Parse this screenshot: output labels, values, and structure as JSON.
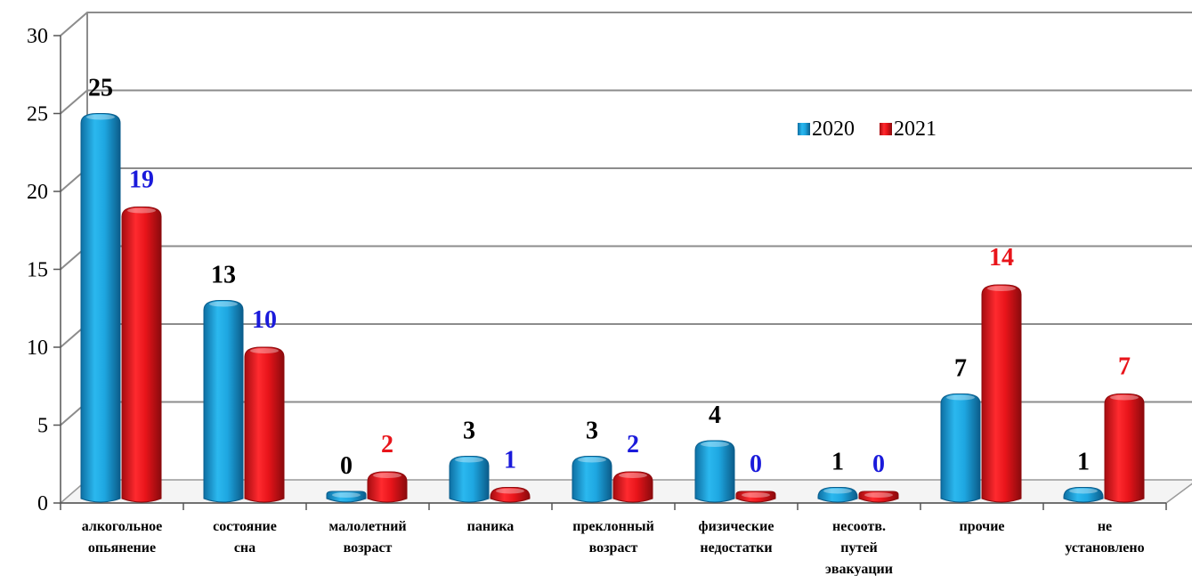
{
  "chart_data": {
    "type": "bar",
    "categories": [
      [
        "алкогольное",
        "опьянение"
      ],
      [
        "состояние",
        "сна"
      ],
      [
        "малолетний",
        "возраст"
      ],
      [
        "паника"
      ],
      [
        "преклонный",
        "возраст"
      ],
      [
        "физические",
        "недостатки"
      ],
      [
        "несоотв.",
        "путей",
        "эвакуации"
      ],
      [
        "прочие"
      ],
      [
        "не",
        "установлено"
      ]
    ],
    "series": [
      {
        "name": "2020",
        "color": "#1ea7e1",
        "values": [
          25,
          13,
          0,
          3,
          3,
          4,
          1,
          7,
          1
        ],
        "label_colors": [
          "#000000",
          "#000000",
          "#000000",
          "#000000",
          "#000000",
          "#000000",
          "#000000",
          "#000000",
          "#000000"
        ]
      },
      {
        "name": "2021",
        "color": "#e8141a",
        "values": [
          19,
          10,
          2,
          1,
          2,
          0,
          0,
          14,
          7
        ],
        "label_colors": [
          "#1a1adb",
          "#1a1adb",
          "#e8141a",
          "#1a1adb",
          "#1a1adb",
          "#1a1adb",
          "#1a1adb",
          "#e8141a",
          "#e8141a"
        ]
      }
    ],
    "yticks": [
      0,
      5,
      10,
      15,
      20,
      25,
      30
    ],
    "ylim": [
      0,
      30
    ],
    "grid": true,
    "legend_position": "top-right"
  }
}
